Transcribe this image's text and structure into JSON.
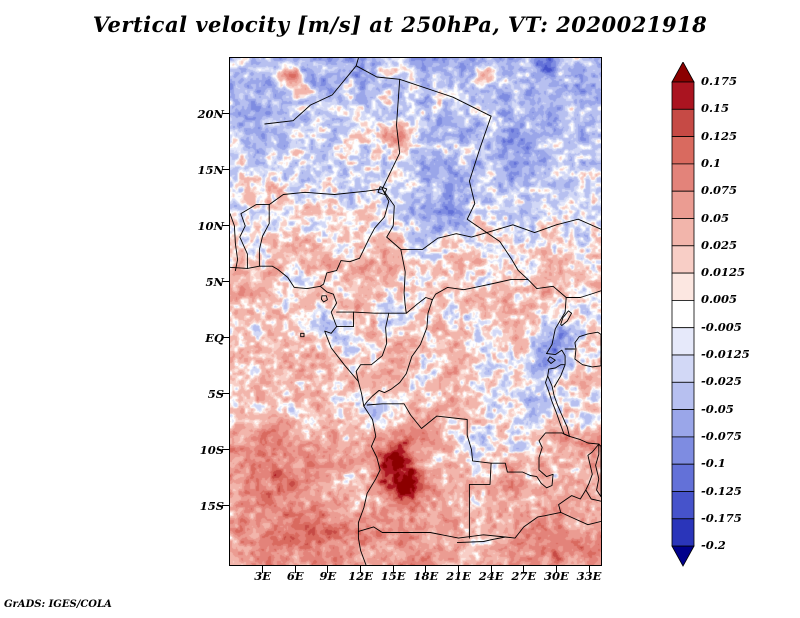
{
  "title": "Vertical velocity [m/s] at 250hPa, VT: 2020021918",
  "attribution": "GrADS: IGES/COLA",
  "axes": {
    "x_ticks": [
      "3E",
      "6E",
      "9E",
      "12E",
      "15E",
      "18E",
      "21E",
      "24E",
      "27E",
      "30E",
      "33E"
    ],
    "y_ticks": [
      "20N",
      "15N",
      "10N",
      "5N",
      "EQ",
      "5S",
      "10S",
      "15S"
    ]
  },
  "colorbar": {
    "labels": [
      "0.175",
      "0.15",
      "0.125",
      "0.1",
      "0.075",
      "0.05",
      "0.025",
      "0.0125",
      "0.005",
      "-0.005",
      "-0.0125",
      "-0.025",
      "-0.05",
      "-0.075",
      "-0.1",
      "-0.125",
      "-0.175",
      "-0.2"
    ],
    "segment_colors_top_to_bottom": [
      "#aa1420",
      "#c64a45",
      "#d96a5f",
      "#e3837a",
      "#eb9c92",
      "#f2b5ab",
      "#f8cec6",
      "#fce7e1",
      "#ffffff",
      "#e6e9fa",
      "#d2d8f6",
      "#b7c0f0",
      "#9aa6e9",
      "#7e8ce1",
      "#6371d8",
      "#4653cb",
      "#2a35ba"
    ],
    "top_arrow_color": "#8b0000",
    "bottom_arrow_color": "#00008b"
  },
  "chart_data": {
    "type": "heatmap",
    "title": "Vertical velocity [m/s] at 250hPa, VT: 2020021918",
    "units": "m/s",
    "pressure_level": "250hPa",
    "valid_time": "2020021918",
    "x_tick_labels": [
      "3E",
      "6E",
      "9E",
      "12E",
      "15E",
      "18E",
      "21E",
      "24E",
      "27E",
      "30E",
      "33E"
    ],
    "y_tick_labels": [
      "20N",
      "15N",
      "10N",
      "5N",
      "EQ",
      "5S",
      "10S",
      "15S"
    ],
    "x_range_deg_east": [
      0,
      34
    ],
    "y_range_deg_north": [
      -20,
      25
    ],
    "contour_levels": [
      -0.2,
      -0.175,
      -0.125,
      -0.1,
      -0.075,
      -0.05,
      -0.025,
      -0.0125,
      -0.005,
      0.005,
      0.0125,
      0.025,
      0.05,
      0.075,
      0.1,
      0.125,
      0.15,
      0.175
    ],
    "legend_position": "right",
    "grid": false
  }
}
